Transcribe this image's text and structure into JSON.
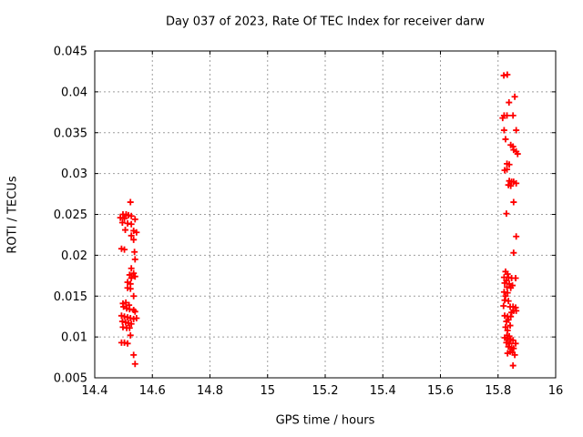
{
  "page": {
    "background": "#ffffff",
    "text_color": "#000000"
  },
  "chart_data": {
    "type": "scatter",
    "title": "Day 037 of 2023, Rate Of TEC Index for receiver darw",
    "xlabel": "GPS time / hours",
    "ylabel": "ROTI / TECUs",
    "xlim": [
      14.4,
      16
    ],
    "ylim": [
      0.005,
      0.045
    ],
    "xticks": [
      14.4,
      14.6,
      14.8,
      15,
      15.2,
      15.4,
      15.6,
      15.8,
      16
    ],
    "xtick_labels": [
      "14.4",
      "14.6",
      "14.8",
      "15",
      "15.2",
      "15.4",
      "15.6",
      "15.8",
      "16"
    ],
    "yticks": [
      0.005,
      0.01,
      0.015,
      0.02,
      0.025,
      0.03,
      0.035,
      0.04,
      0.045
    ],
    "ytick_labels": [
      "0.005",
      "0.01",
      "0.015",
      "0.02",
      "0.025",
      "0.03",
      "0.035",
      "0.04",
      "0.045"
    ],
    "grid": true,
    "grid_style": "dashed",
    "grid_color": "#9e9e9e",
    "frame_color": "#000000",
    "legend": "none",
    "marker": {
      "shape": "plus",
      "color": "#ff0000",
      "size": 7,
      "stroke_width": 1.8
    },
    "series": [
      {
        "name": "ROTI",
        "points": [
          [
            14.524,
            0.0265
          ],
          [
            14.498,
            0.025
          ],
          [
            14.509,
            0.025
          ],
          [
            14.517,
            0.0249
          ],
          [
            14.527,
            0.0248
          ],
          [
            14.489,
            0.0246
          ],
          [
            14.503,
            0.0245
          ],
          [
            14.54,
            0.0244
          ],
          [
            14.496,
            0.024
          ],
          [
            14.514,
            0.0239
          ],
          [
            14.527,
            0.0238
          ],
          [
            14.506,
            0.0231
          ],
          [
            14.535,
            0.023
          ],
          [
            14.545,
            0.0228
          ],
          [
            14.527,
            0.0224
          ],
          [
            14.535,
            0.0219
          ],
          [
            14.493,
            0.0208
          ],
          [
            14.503,
            0.0207
          ],
          [
            14.538,
            0.0204
          ],
          [
            14.54,
            0.0195
          ],
          [
            14.527,
            0.0184
          ],
          [
            14.535,
            0.0178
          ],
          [
            14.521,
            0.0176
          ],
          [
            14.54,
            0.0174
          ],
          [
            14.527,
            0.0172
          ],
          [
            14.514,
            0.0167
          ],
          [
            14.524,
            0.0165
          ],
          [
            14.514,
            0.016
          ],
          [
            14.524,
            0.0159
          ],
          [
            14.535,
            0.015
          ],
          [
            14.498,
            0.0141
          ],
          [
            14.508,
            0.0142
          ],
          [
            14.519,
            0.0139
          ],
          [
            14.5,
            0.0137
          ],
          [
            14.511,
            0.0135
          ],
          [
            14.521,
            0.0134
          ],
          [
            14.535,
            0.0133
          ],
          [
            14.54,
            0.0131
          ],
          [
            14.493,
            0.0126
          ],
          [
            14.503,
            0.0125
          ],
          [
            14.514,
            0.0124
          ],
          [
            14.524,
            0.0123
          ],
          [
            14.535,
            0.0122
          ],
          [
            14.545,
            0.0123
          ],
          [
            14.496,
            0.0119
          ],
          [
            14.507,
            0.0118
          ],
          [
            14.517,
            0.0117
          ],
          [
            14.527,
            0.0116
          ],
          [
            14.498,
            0.0112
          ],
          [
            14.511,
            0.0111
          ],
          [
            14.521,
            0.0111
          ],
          [
            14.524,
            0.0102
          ],
          [
            14.493,
            0.0093
          ],
          [
            14.503,
            0.0093
          ],
          [
            14.514,
            0.0092
          ],
          [
            14.535,
            0.0078
          ],
          [
            14.54,
            0.0067
          ],
          [
            15.82,
            0.042
          ],
          [
            15.832,
            0.0421
          ],
          [
            15.858,
            0.0394
          ],
          [
            15.838,
            0.0387
          ],
          [
            15.821,
            0.0371
          ],
          [
            15.831,
            0.0371
          ],
          [
            15.852,
            0.0371
          ],
          [
            15.816,
            0.0368
          ],
          [
            15.821,
            0.0353
          ],
          [
            15.863,
            0.0353
          ],
          [
            15.826,
            0.0342
          ],
          [
            15.844,
            0.0335
          ],
          [
            15.852,
            0.0333
          ],
          [
            15.854,
            0.0329
          ],
          [
            15.863,
            0.0327
          ],
          [
            15.868,
            0.0324
          ],
          [
            15.831,
            0.0312
          ],
          [
            15.839,
            0.0311
          ],
          [
            15.823,
            0.0304
          ],
          [
            15.831,
            0.0305
          ],
          [
            15.839,
            0.0291
          ],
          [
            15.847,
            0.029
          ],
          [
            15.854,
            0.029
          ],
          [
            15.863,
            0.0288
          ],
          [
            15.836,
            0.0286
          ],
          [
            15.844,
            0.0285
          ],
          [
            15.854,
            0.0265
          ],
          [
            15.829,
            0.0251
          ],
          [
            15.863,
            0.0223
          ],
          [
            15.854,
            0.0203
          ],
          [
            15.826,
            0.018
          ],
          [
            15.833,
            0.0177
          ],
          [
            15.821,
            0.0173
          ],
          [
            15.836,
            0.0173
          ],
          [
            15.847,
            0.0172
          ],
          [
            15.861,
            0.0172
          ],
          [
            15.829,
            0.0169
          ],
          [
            15.823,
            0.0166
          ],
          [
            15.839,
            0.0165
          ],
          [
            15.85,
            0.0163
          ],
          [
            15.831,
            0.0161
          ],
          [
            15.844,
            0.016
          ],
          [
            15.821,
            0.0155
          ],
          [
            15.833,
            0.0154
          ],
          [
            15.826,
            0.015
          ],
          [
            15.823,
            0.0145
          ],
          [
            15.836,
            0.0144
          ],
          [
            15.819,
            0.0138
          ],
          [
            15.842,
            0.0137
          ],
          [
            15.852,
            0.0137
          ],
          [
            15.861,
            0.0136
          ],
          [
            15.854,
            0.0132
          ],
          [
            15.863,
            0.0132
          ],
          [
            15.847,
            0.013
          ],
          [
            15.823,
            0.0126
          ],
          [
            15.833,
            0.0125
          ],
          [
            15.844,
            0.0125
          ],
          [
            15.836,
            0.0121
          ],
          [
            15.829,
            0.0119
          ],
          [
            15.842,
            0.0114
          ],
          [
            15.826,
            0.0112
          ],
          [
            15.833,
            0.0108
          ],
          [
            15.831,
            0.0102
          ],
          [
            15.839,
            0.0101
          ],
          [
            15.823,
            0.0099
          ],
          [
            15.833,
            0.0098
          ],
          [
            15.844,
            0.0097
          ],
          [
            15.852,
            0.0096
          ],
          [
            15.829,
            0.0093
          ],
          [
            15.839,
            0.0092
          ],
          [
            15.861,
            0.0092
          ],
          [
            15.836,
            0.0088
          ],
          [
            15.847,
            0.0087
          ],
          [
            15.854,
            0.0086
          ],
          [
            15.842,
            0.0082
          ],
          [
            15.85,
            0.0081
          ],
          [
            15.833,
            0.008
          ],
          [
            15.858,
            0.0078
          ],
          [
            15.852,
            0.0065
          ]
        ]
      }
    ]
  }
}
